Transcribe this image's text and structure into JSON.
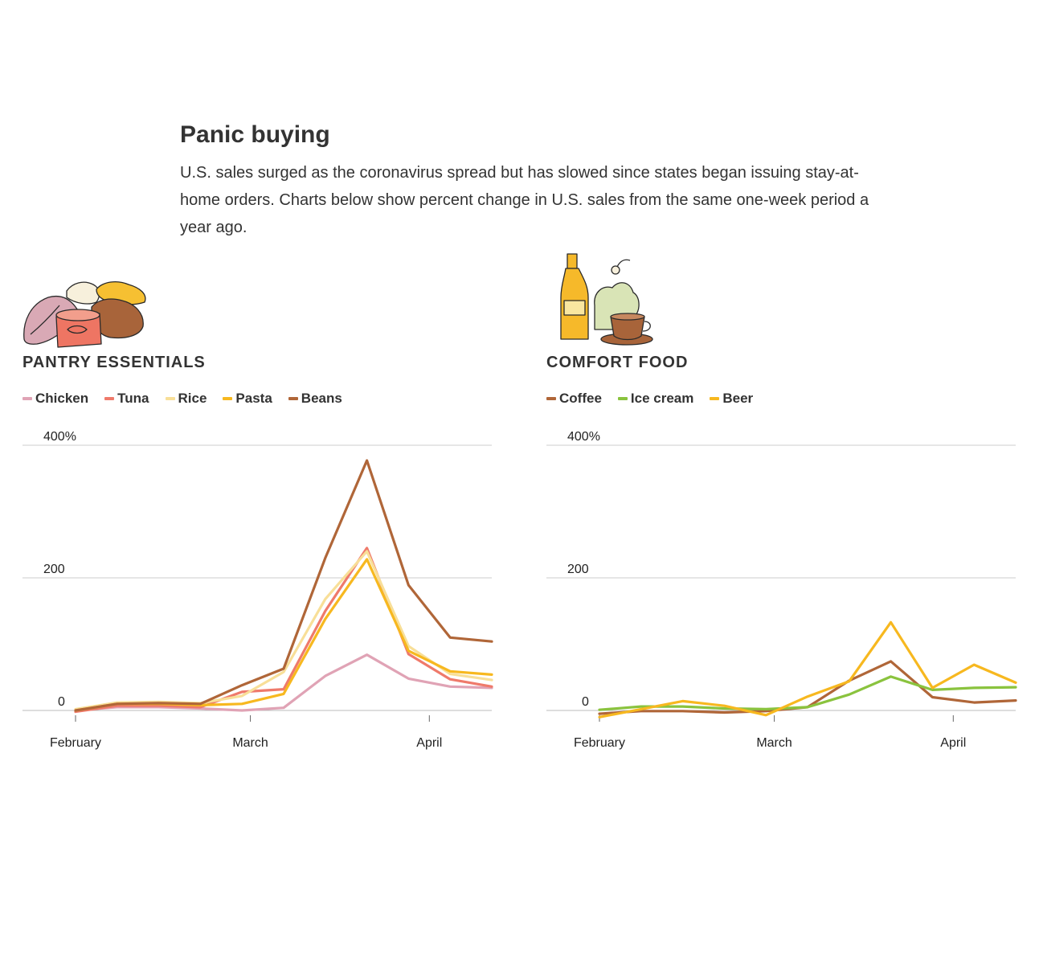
{
  "header": {
    "title": "Panic buying",
    "subtitle": "U.S. sales surged as the coronavirus spread but has slowed since states began issuing stay-at-home orders. Charts below show percent change in U.S. sales from the same one-week period a year ago."
  },
  "chart_data": [
    {
      "type": "line",
      "title": "PANTRY ESSENTIALS",
      "xlabel": "",
      "ylabel": "",
      "x": [
        1,
        2,
        3,
        4,
        5,
        6,
        7,
        8,
        9,
        10,
        11
      ],
      "x_tick_labels": [
        "February",
        "March",
        "April"
      ],
      "x_tick_positions": [
        1,
        5.2,
        9.5
      ],
      "ylim": [
        0,
        400
      ],
      "y_ticks": [
        0,
        200,
        400
      ],
      "y_tick_labels": [
        "0",
        "200",
        "400%"
      ],
      "grid": true,
      "legend_placement": "top",
      "series": [
        {
          "name": "Chicken",
          "color": "#e0a3b5",
          "values": [
            0,
            5,
            5,
            3,
            0,
            4,
            52,
            84,
            48,
            36,
            34
          ]
        },
        {
          "name": "Tuna",
          "color": "#ef7a6b",
          "values": [
            -2,
            7,
            7,
            5,
            28,
            32,
            150,
            245,
            85,
            47,
            36
          ]
        },
        {
          "name": "Rice",
          "color": "#f8df98",
          "values": [
            2,
            12,
            13,
            11,
            22,
            58,
            168,
            240,
            97,
            55,
            46
          ]
        },
        {
          "name": "Pasta",
          "color": "#f7b81f",
          "values": [
            0,
            10,
            10,
            8,
            10,
            25,
            138,
            228,
            90,
            59,
            54
          ]
        },
        {
          "name": "Beans",
          "color": "#b06638",
          "values": [
            0,
            10,
            11,
            10,
            38,
            63,
            230,
            377,
            189,
            110,
            104
          ]
        }
      ]
    },
    {
      "type": "line",
      "title": "COMFORT FOOD",
      "xlabel": "",
      "ylabel": "",
      "x": [
        1,
        2,
        3,
        4,
        5,
        6,
        7,
        8,
        9,
        10,
        11
      ],
      "x_tick_labels": [
        "February",
        "March",
        "April"
      ],
      "x_tick_positions": [
        1,
        5.2,
        9.5
      ],
      "ylim": [
        0,
        400
      ],
      "y_ticks": [
        0,
        200,
        400
      ],
      "y_tick_labels": [
        "0",
        "200",
        "400%"
      ],
      "grid": true,
      "legend_placement": "top",
      "series": [
        {
          "name": "Coffee",
          "color": "#b06638",
          "values": [
            -5,
            -1,
            -1,
            -3,
            -1,
            5,
            45,
            74,
            20,
            12,
            15
          ]
        },
        {
          "name": "Ice cream",
          "color": "#8ac33e",
          "values": [
            1,
            6,
            6,
            3,
            2,
            5,
            24,
            51,
            31,
            34,
            35
          ]
        },
        {
          "name": "Beer",
          "color": "#f7b81f",
          "values": [
            -10,
            2,
            14,
            7,
            -7,
            21,
            44,
            133,
            34,
            69,
            42
          ]
        }
      ]
    }
  ]
}
